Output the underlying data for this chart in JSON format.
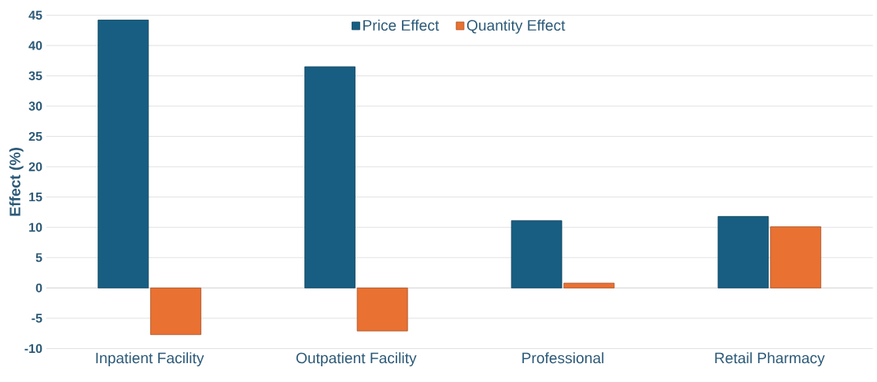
{
  "chart_data": {
    "type": "bar",
    "ylabel": "Effect (%)",
    "categories": [
      "Inpatient Facility",
      "Outpatient Facility",
      "Professional",
      "Retail Pharmacy"
    ],
    "series": [
      {
        "name": "Price Effect",
        "color": "#175e82",
        "values": [
          44.2,
          36.5,
          11.1,
          11.8
        ]
      },
      {
        "name": "Quantity Effect",
        "color": "#e97132",
        "values": [
          -7.7,
          -7.1,
          0.8,
          10.1
        ]
      }
    ],
    "ylim": [
      -10,
      45
    ],
    "yticks": [
      -10,
      -5,
      0,
      5,
      10,
      15,
      20,
      25,
      30,
      35,
      40,
      45
    ],
    "grid": "y",
    "legend": "top"
  }
}
